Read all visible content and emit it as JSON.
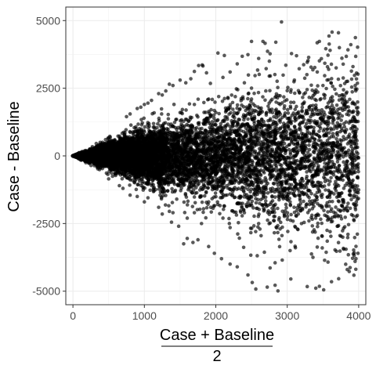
{
  "chart_data": {
    "type": "scatter",
    "title": "",
    "ylabel": "Case - Baseline",
    "xlabel": {
      "numerator": "Case + Baseline",
      "denominator": "2"
    },
    "xlim": [
      -100,
      4100
    ],
    "ylim": [
      -5500,
      5500
    ],
    "x_ticks": [
      0,
      1000,
      2000,
      3000,
      4000
    ],
    "x_tick_labels": [
      "0",
      "1000",
      "2000",
      "3000",
      "4000"
    ],
    "y_ticks": [
      -5000,
      -2500,
      0,
      2500,
      5000
    ],
    "y_tick_labels": [
      "-5000",
      "-2500",
      "0",
      "2500",
      "5000"
    ],
    "grid": true,
    "point_color": "#000000",
    "point_opacity": 0.65,
    "notes_on_distribution": "fan-shaped spread: differences bounded roughly by +/- 1.45 * mean",
    "points": [
      [
        2920,
        4950
      ],
      [
        2660,
        4230
      ],
      [
        2840,
        4200
      ],
      [
        2690,
        4160
      ],
      [
        2500,
        4230
      ],
      [
        2030,
        3800
      ],
      [
        2120,
        3710
      ],
      [
        2370,
        3680
      ],
      [
        2450,
        3740
      ],
      [
        3450,
        4230
      ],
      [
        3540,
        3960
      ],
      [
        3600,
        3900
      ],
      [
        3890,
        4110
      ],
      [
        3850,
        3920
      ],
      [
        3730,
        4000
      ],
      [
        3300,
        3640
      ],
      [
        3280,
        3460
      ],
      [
        3230,
        3370
      ],
      [
        3130,
        3700
      ],
      [
        3060,
        3780
      ],
      [
        1700,
        3120
      ],
      [
        1820,
        3320
      ],
      [
        1760,
        3340
      ],
      [
        1810,
        3360
      ],
      [
        1870,
        3070
      ],
      [
        2300,
        3400
      ],
      [
        2200,
        3100
      ],
      [
        2600,
        3600
      ],
      [
        2750,
        3500
      ],
      [
        2980,
        3350
      ],
      [
        3920,
        3300
      ],
      [
        3970,
        3060
      ],
      [
        3990,
        3020
      ],
      [
        3580,
        3200
      ],
      [
        3420,
        3100
      ],
      [
        1500,
        2800
      ],
      [
        1400,
        2600
      ],
      [
        1350,
        2650
      ],
      [
        1580,
        2700
      ],
      [
        1650,
        2850
      ],
      [
        1200,
        2300
      ],
      [
        1250,
        2250
      ],
      [
        1100,
        2050
      ],
      [
        1050,
        1950
      ],
      [
        1300,
        2400
      ],
      [
        950,
        1800
      ],
      [
        900,
        1750
      ],
      [
        800,
        1550
      ],
      [
        750,
        1450
      ],
      [
        1000,
        1900
      ],
      [
        2100,
        2900
      ],
      [
        2400,
        2700
      ],
      [
        2700,
        2400
      ],
      [
        3100,
        2800
      ],
      [
        3500,
        2600
      ],
      [
        3800,
        2200
      ],
      [
        3950,
        1900
      ],
      [
        3700,
        1600
      ],
      [
        3300,
        1700
      ],
      [
        2900,
        1900
      ],
      [
        2500,
        2100
      ],
      [
        2200,
        1800
      ],
      [
        1900,
        2100
      ],
      [
        1700,
        1900
      ],
      [
        1500,
        1600
      ],
      [
        3950,
        550
      ],
      [
        3900,
        -50
      ],
      [
        3880,
        -600
      ],
      [
        3920,
        -900
      ],
      [
        3970,
        -1500
      ],
      [
        1380,
        -2450
      ],
      [
        1480,
        -2600
      ],
      [
        1600,
        -3050
      ],
      [
        1550,
        -3250
      ],
      [
        1680,
        -3200
      ],
      [
        1750,
        -3100
      ],
      [
        1900,
        -3350
      ],
      [
        1980,
        -3600
      ],
      [
        2080,
        -3800
      ],
      [
        2200,
        -4000
      ],
      [
        2300,
        -4100
      ],
      [
        2450,
        -4400
      ],
      [
        2510,
        -4680
      ],
      [
        2560,
        -4920
      ],
      [
        2720,
        -4850
      ],
      [
        2870,
        -4990
      ],
      [
        2830,
        -4780
      ],
      [
        3050,
        -4550
      ],
      [
        3280,
        -4830
      ],
      [
        3400,
        -4890
      ],
      [
        3450,
        -4820
      ],
      [
        3510,
        -4950
      ],
      [
        3620,
        -4650
      ],
      [
        3720,
        -4540
      ],
      [
        3840,
        -4200
      ],
      [
        3880,
        -4130
      ],
      [
        3950,
        -3900
      ],
      [
        3990,
        -3600
      ],
      [
        3960,
        -4190
      ],
      [
        3930,
        -3480
      ],
      [
        3360,
        -3750
      ],
      [
        3420,
        -3370
      ],
      [
        3490,
        -3400
      ],
      [
        3560,
        -3150
      ],
      [
        3600,
        -2800
      ],
      [
        3110,
        -3340
      ],
      [
        3040,
        -3500
      ],
      [
        2930,
        -3850
      ],
      [
        2830,
        -3950
      ],
      [
        2760,
        -4140
      ],
      [
        2680,
        -3560
      ],
      [
        2580,
        -3690
      ],
      [
        2490,
        -3670
      ],
      [
        2390,
        -3380
      ],
      [
        2330,
        -3040
      ],
      [
        3560,
        -1520
      ],
      [
        3620,
        -1960
      ],
      [
        3760,
        -1830
      ],
      [
        3180,
        -1640
      ],
      [
        3000,
        -1500
      ],
      [
        2700,
        -1800
      ],
      [
        2400,
        -2100
      ],
      [
        2100,
        -2300
      ],
      [
        1900,
        -1700
      ],
      [
        1700,
        -2100
      ],
      [
        3200,
        -2500
      ],
      [
        3400,
        -2200
      ],
      [
        3700,
        -2600
      ],
      [
        3850,
        -2900
      ],
      [
        2900,
        -2700
      ],
      [
        2600,
        -2500
      ],
      [
        2200,
        -2650
      ],
      [
        1800,
        -2500
      ],
      [
        1600,
        -2300
      ],
      [
        1400,
        -2100
      ],
      [
        1200,
        -1900
      ],
      [
        1000,
        -1700
      ],
      [
        800,
        -1450
      ],
      [
        650,
        -1100
      ],
      [
        500,
        -850
      ],
      [
        1250,
        -2150
      ],
      [
        1350,
        -2050
      ],
      [
        1050,
        -1550
      ],
      [
        900,
        -1500
      ],
      [
        700,
        -1200
      ]
    ]
  }
}
